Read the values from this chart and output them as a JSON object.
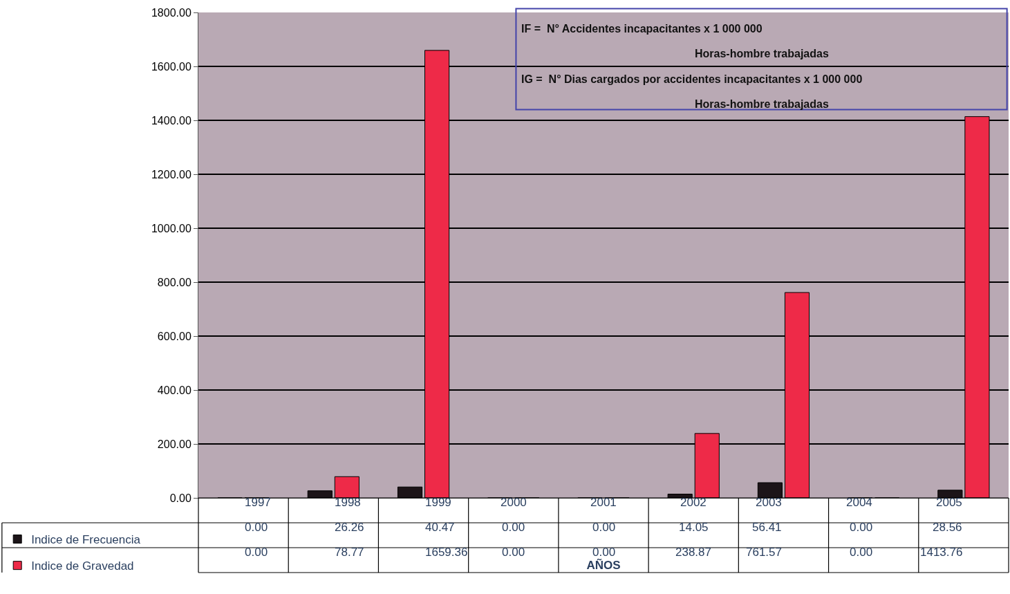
{
  "chart_data": {
    "type": "bar",
    "xlabel": "AÑOS",
    "categories": [
      "1997",
      "1998",
      "1999",
      "2000",
      "2001",
      "2002",
      "2003",
      "2004",
      "2005"
    ],
    "series": [
      {
        "name": "Indice de Frecuencia",
        "color": "#1c1418",
        "values": [
          0.0,
          26.26,
          40.47,
          0.0,
          0.0,
          14.05,
          56.41,
          0.0,
          28.56
        ],
        "value_labels": [
          "0.00",
          "26.26",
          "40.47",
          "0.00",
          "0.00",
          "14.05",
          "56.41",
          "0.00",
          "28.56"
        ]
      },
      {
        "name": "Indice de Gravedad",
        "color": "#ee2a48",
        "values": [
          0.0,
          78.77,
          1659.36,
          0.0,
          0.0,
          238.87,
          761.57,
          0.0,
          1413.76
        ],
        "value_labels": [
          "0.00",
          "78.77",
          "1659.36",
          "0.00",
          "0.00",
          "238.87",
          "761.57",
          "0.00",
          "1413.76"
        ]
      }
    ],
    "ylim": [
      0,
      1800
    ],
    "yticks": [
      {
        "value": 0,
        "label": "0.00"
      },
      {
        "value": 200,
        "label": "200.00"
      },
      {
        "value": 400,
        "label": "400.00"
      },
      {
        "value": 600,
        "label": "600.00"
      },
      {
        "value": 800,
        "label": "800.00"
      },
      {
        "value": 1000,
        "label": "1000.00"
      },
      {
        "value": 1200,
        "label": "1200.00"
      },
      {
        "value": 1400,
        "label": "1400.00"
      },
      {
        "value": 1600,
        "label": "1600.00"
      },
      {
        "value": 1800,
        "label": "1800.00"
      }
    ],
    "grid": "y",
    "legend": "bottom left",
    "annotations": [
      "IF =  N° Accidentes incapacitantes x 1 000 000",
      "Horas-hombre trabajadas",
      "IG =  N° Dias cargados por accidentes incapacitantes x 1 000 000",
      "Horas-hombre trabajadas"
    ]
  }
}
